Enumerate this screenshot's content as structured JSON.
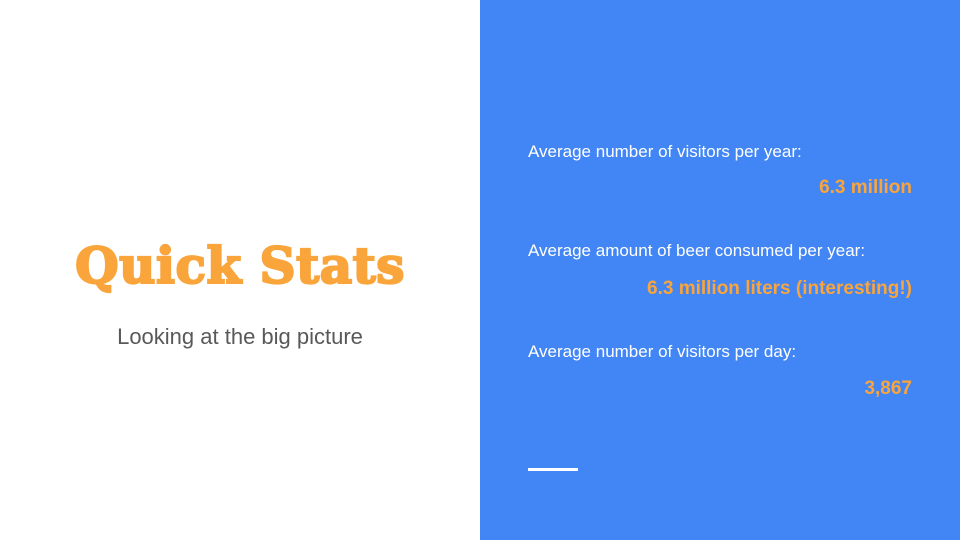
{
  "title": "Quick Stats",
  "subtitle": "Looking at the big picture",
  "stats": [
    {
      "label": "Average number of visitors per year:",
      "value": "6.3 million"
    },
    {
      "label": "Average amount of beer consumed per year:",
      "value": "6.3 million liters (interesting!)"
    },
    {
      "label": "Average number of visitors per day:",
      "value": "3,867"
    }
  ],
  "colors": {
    "accent": "#f9a53b",
    "panel": "#4285f4",
    "subtitle_text": "#595959",
    "label_text": "#ffffff",
    "background": "#ffffff"
  }
}
